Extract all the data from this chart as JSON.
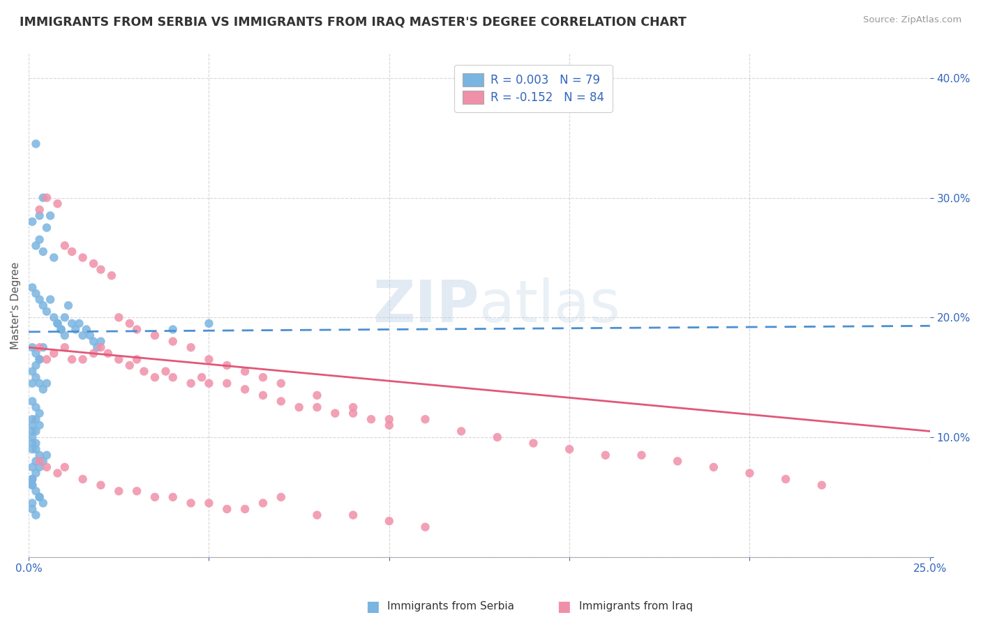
{
  "title": "IMMIGRANTS FROM SERBIA VS IMMIGRANTS FROM IRAQ MASTER'S DEGREE CORRELATION CHART",
  "source": "Source: ZipAtlas.com",
  "ylabel": "Master's Degree",
  "xlim": [
    0.0,
    0.25
  ],
  "ylim": [
    0.0,
    0.42
  ],
  "serbia_color": "#7ab4e0",
  "iraq_color": "#f090a8",
  "serbia_line_color": "#4a90d0",
  "iraq_line_color": "#e05878",
  "serbia_R": 0.003,
  "serbia_N": 79,
  "iraq_R": -0.152,
  "iraq_N": 84,
  "watermark_zip": "ZIP",
  "watermark_atlas": "atlas",
  "background_color": "#ffffff",
  "grid_color": "#cccccc",
  "legend_text_color": "#3366bb",
  "title_color": "#333333",
  "serbia_scatter_x": [
    0.002,
    0.004,
    0.001,
    0.003,
    0.002,
    0.003,
    0.004,
    0.005,
    0.006,
    0.007,
    0.008,
    0.009,
    0.01,
    0.011,
    0.012,
    0.013,
    0.014,
    0.015,
    0.016,
    0.017,
    0.018,
    0.019,
    0.02,
    0.001,
    0.002,
    0.003,
    0.004,
    0.005,
    0.006,
    0.007,
    0.008,
    0.009,
    0.01,
    0.001,
    0.002,
    0.003,
    0.004,
    0.001,
    0.002,
    0.003,
    0.001,
    0.002,
    0.003,
    0.004,
    0.005,
    0.001,
    0.002,
    0.003,
    0.001,
    0.002,
    0.001,
    0.001,
    0.002,
    0.003,
    0.001,
    0.002,
    0.001,
    0.001,
    0.002,
    0.003,
    0.004,
    0.04,
    0.05,
    0.001,
    0.002,
    0.001,
    0.003,
    0.001,
    0.001,
    0.002,
    0.003,
    0.004,
    0.005,
    0.001,
    0.002,
    0.001,
    0.002,
    0.003,
    0.001
  ],
  "serbia_scatter_y": [
    0.345,
    0.3,
    0.28,
    0.285,
    0.26,
    0.265,
    0.255,
    0.275,
    0.285,
    0.25,
    0.195,
    0.19,
    0.2,
    0.21,
    0.195,
    0.19,
    0.195,
    0.185,
    0.19,
    0.185,
    0.18,
    0.175,
    0.18,
    0.225,
    0.22,
    0.215,
    0.21,
    0.205,
    0.215,
    0.2,
    0.195,
    0.19,
    0.185,
    0.175,
    0.17,
    0.165,
    0.175,
    0.155,
    0.16,
    0.165,
    0.145,
    0.15,
    0.145,
    0.14,
    0.145,
    0.13,
    0.125,
    0.12,
    0.11,
    0.115,
    0.105,
    0.095,
    0.09,
    0.085,
    0.075,
    0.08,
    0.065,
    0.06,
    0.055,
    0.05,
    0.045,
    0.19,
    0.195,
    0.04,
    0.035,
    0.045,
    0.05,
    0.06,
    0.065,
    0.07,
    0.075,
    0.08,
    0.085,
    0.09,
    0.095,
    0.1,
    0.105,
    0.11,
    0.115
  ],
  "iraq_scatter_x": [
    0.003,
    0.005,
    0.007,
    0.01,
    0.012,
    0.015,
    0.018,
    0.02,
    0.022,
    0.025,
    0.028,
    0.03,
    0.032,
    0.035,
    0.038,
    0.04,
    0.045,
    0.048,
    0.05,
    0.055,
    0.06,
    0.065,
    0.07,
    0.075,
    0.08,
    0.085,
    0.09,
    0.095,
    0.1,
    0.11,
    0.12,
    0.13,
    0.14,
    0.15,
    0.16,
    0.17,
    0.18,
    0.19,
    0.2,
    0.21,
    0.22,
    0.003,
    0.005,
    0.008,
    0.01,
    0.012,
    0.015,
    0.018,
    0.02,
    0.023,
    0.025,
    0.028,
    0.03,
    0.035,
    0.04,
    0.045,
    0.05,
    0.055,
    0.06,
    0.065,
    0.07,
    0.08,
    0.09,
    0.1,
    0.003,
    0.005,
    0.008,
    0.01,
    0.015,
    0.02,
    0.025,
    0.03,
    0.035,
    0.04,
    0.045,
    0.05,
    0.055,
    0.06,
    0.065,
    0.07,
    0.08,
    0.09,
    0.1,
    0.11
  ],
  "iraq_scatter_y": [
    0.175,
    0.165,
    0.17,
    0.175,
    0.165,
    0.165,
    0.17,
    0.175,
    0.17,
    0.165,
    0.16,
    0.165,
    0.155,
    0.15,
    0.155,
    0.15,
    0.145,
    0.15,
    0.145,
    0.145,
    0.14,
    0.135,
    0.13,
    0.125,
    0.125,
    0.12,
    0.12,
    0.115,
    0.11,
    0.115,
    0.105,
    0.1,
    0.095,
    0.09,
    0.085,
    0.085,
    0.08,
    0.075,
    0.07,
    0.065,
    0.06,
    0.29,
    0.3,
    0.295,
    0.26,
    0.255,
    0.25,
    0.245,
    0.24,
    0.235,
    0.2,
    0.195,
    0.19,
    0.185,
    0.18,
    0.175,
    0.165,
    0.16,
    0.155,
    0.15,
    0.145,
    0.135,
    0.125,
    0.115,
    0.08,
    0.075,
    0.07,
    0.075,
    0.065,
    0.06,
    0.055,
    0.055,
    0.05,
    0.05,
    0.045,
    0.045,
    0.04,
    0.04,
    0.045,
    0.05,
    0.035,
    0.035,
    0.03,
    0.025
  ]
}
